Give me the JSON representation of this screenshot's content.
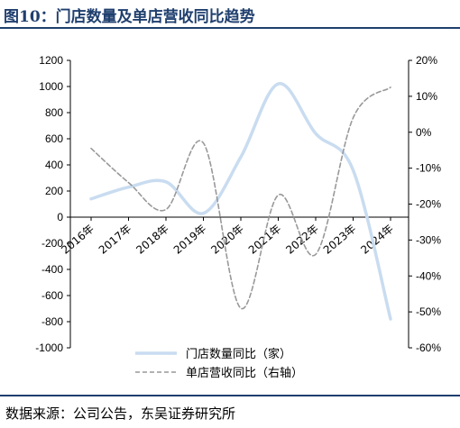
{
  "header": {
    "title": "图10：门店数量及单店营收同比趋势"
  },
  "footer": {
    "source": "数据来源：公司公告，东吴证券研究所"
  },
  "chart_data": {
    "type": "line",
    "categories": [
      "2016年",
      "2017年",
      "2018年",
      "2019年",
      "2020年",
      "2021年",
      "2022年",
      "2023年",
      "2024年"
    ],
    "series": [
      {
        "name": "门店数量同比（家）",
        "axis": "left",
        "values": [
          140,
          230,
          270,
          30,
          460,
          1020,
          640,
          360,
          -780
        ],
        "color": "#c9dcf0",
        "style": "solid"
      },
      {
        "name": "单店营收同比（右轴）",
        "axis": "right",
        "values": [
          -4.5,
          -14,
          -21.5,
          -3,
          -49,
          -17.5,
          -34,
          4,
          12.5
        ],
        "color": "#999999",
        "style": "dashed"
      }
    ],
    "y_left": {
      "ylim": [
        -1000,
        1200
      ],
      "ticks": [
        -1000,
        -800,
        -600,
        -400,
        -200,
        0,
        200,
        400,
        600,
        800,
        1000,
        1200
      ],
      "tick_labels": [
        "-1000",
        "-800",
        "-600",
        "-400",
        "-200",
        "0",
        "200",
        "400",
        "600",
        "800",
        "1000",
        "1200"
      ]
    },
    "y_right": {
      "ylim": [
        -60,
        20
      ],
      "ticks": [
        -60,
        -50,
        -40,
        -30,
        -20,
        -10,
        0,
        10,
        20
      ],
      "tick_labels": [
        "-60%",
        "-50%",
        "-40%",
        "-30%",
        "-20%",
        "-10%",
        "0%",
        "10%",
        "20%"
      ]
    },
    "legend_position": "bottom-center",
    "grid": false
  }
}
